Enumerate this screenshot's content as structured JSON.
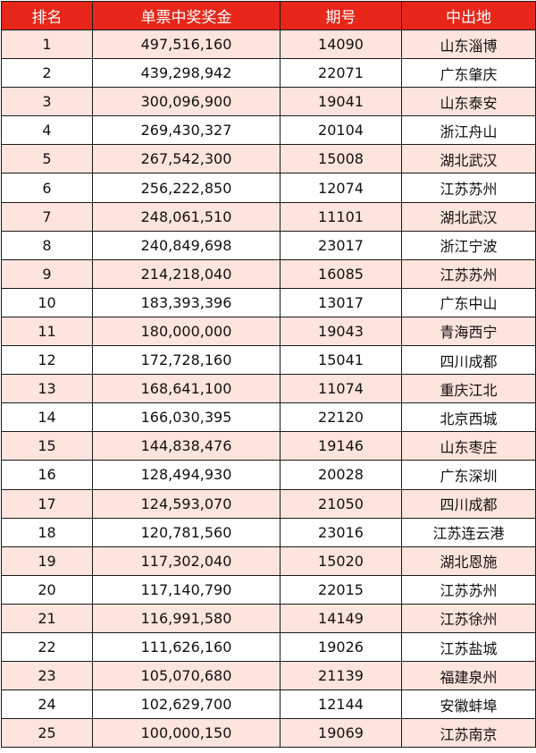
{
  "table": {
    "headers": [
      "排名",
      "单票中奖奖金",
      "期号",
      "中出地"
    ],
    "rows": [
      [
        "1",
        "497,516,160",
        "14090",
        "山东淄博"
      ],
      [
        "2",
        "439,298,942",
        "22071",
        "广东肇庆"
      ],
      [
        "3",
        "300,096,900",
        "19041",
        "山东泰安"
      ],
      [
        "4",
        "269,430,327",
        "20104",
        "浙江舟山"
      ],
      [
        "5",
        "267,542,300",
        "15008",
        "湖北武汉"
      ],
      [
        "6",
        "256,222,850",
        "12074",
        "江苏苏州"
      ],
      [
        "7",
        "248,061,510",
        "11101",
        "湖北武汉"
      ],
      [
        "8",
        "240,849,698",
        "23017",
        "浙江宁波"
      ],
      [
        "9",
        "214,218,040",
        "16085",
        "江苏苏州"
      ],
      [
        "10",
        "183,393,396",
        "13017",
        "广东中山"
      ],
      [
        "11",
        "180,000,000",
        "19043",
        "青海西宁"
      ],
      [
        "12",
        "172,728,160",
        "15041",
        "四川成都"
      ],
      [
        "13",
        "168,641,100",
        "11074",
        "重庆江北"
      ],
      [
        "14",
        "166,030,395",
        "22120",
        "北京西城"
      ],
      [
        "15",
        "144,838,476",
        "19146",
        "山东枣庄"
      ],
      [
        "16",
        "128,494,930",
        "20028",
        "广东深圳"
      ],
      [
        "17",
        "124,593,070",
        "21050",
        "四川成都"
      ],
      [
        "18",
        "120,781,560",
        "23016",
        "江苏连云港"
      ],
      [
        "19",
        "117,302,040",
        "15020",
        "湖北恩施"
      ],
      [
        "20",
        "117,140,790",
        "22015",
        "江苏苏州"
      ],
      [
        "21",
        "116,991,580",
        "14149",
        "江苏徐州"
      ],
      [
        "22",
        "111,626,160",
        "19026",
        "江苏盐城"
      ],
      [
        "23",
        "105,070,680",
        "21139",
        "福建泉州"
      ],
      [
        "24",
        "102,629,700",
        "12144",
        "安徽蚌埠"
      ],
      [
        "25",
        "100,000,150",
        "19069",
        "江苏南京"
      ]
    ]
  },
  "colors": {
    "header_bg": "#e8261a",
    "header_text": "#ffffff",
    "stripe_bg": "#fde4dc",
    "row_bg": "#ffffff",
    "border": "#1a1a1a"
  }
}
